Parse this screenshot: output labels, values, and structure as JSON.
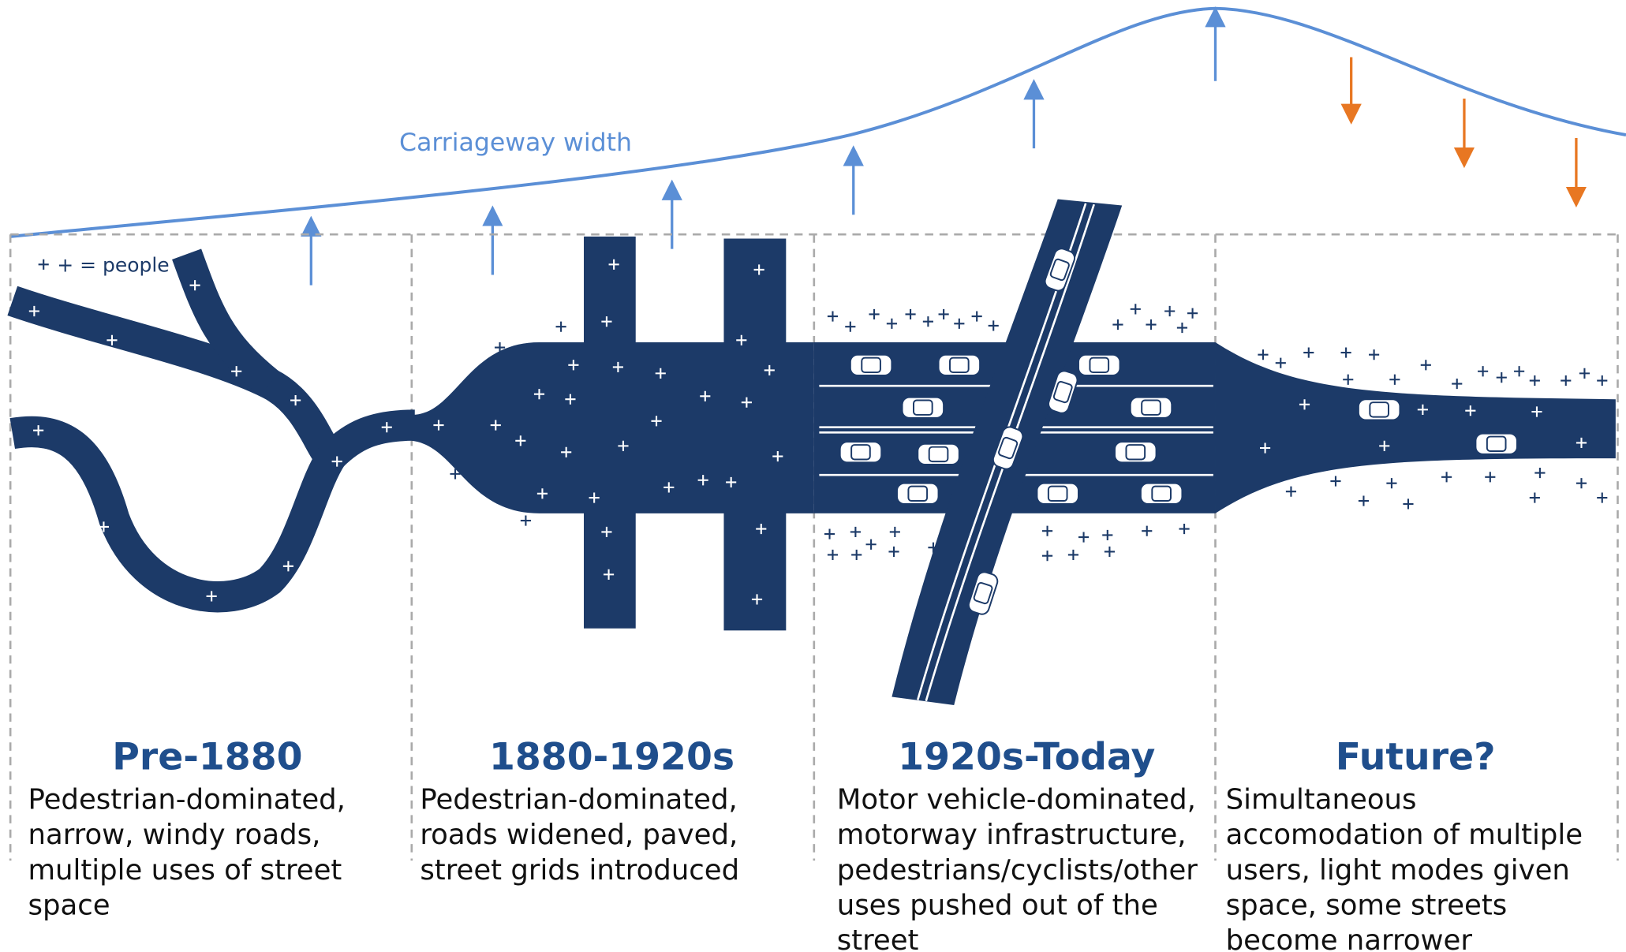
{
  "diagram": {
    "curve_label": "Carriageway width",
    "legend": "+ = people",
    "periods": [
      {
        "title": "Pre-1880",
        "description": [
          "Pedestrian-dominated,",
          "narrow, windy roads,",
          "multiple uses of street",
          "space"
        ]
      },
      {
        "title": "1880-1920s",
        "description": [
          "Pedestrian-dominated,",
          "roads widened, paved,",
          "street grids introduced"
        ]
      },
      {
        "title": "1920s-Today",
        "description": [
          "Motor vehicle-dominated,",
          "motorway infrastructure,",
          "pedestrians/cyclists/other",
          "uses pushed out of the",
          "street"
        ]
      },
      {
        "title": "Future?",
        "description": [
          "Simultaneous",
          "accomodation of multiple",
          "users, light modes given",
          "space, some streets",
          "become narrower"
        ]
      }
    ]
  }
}
